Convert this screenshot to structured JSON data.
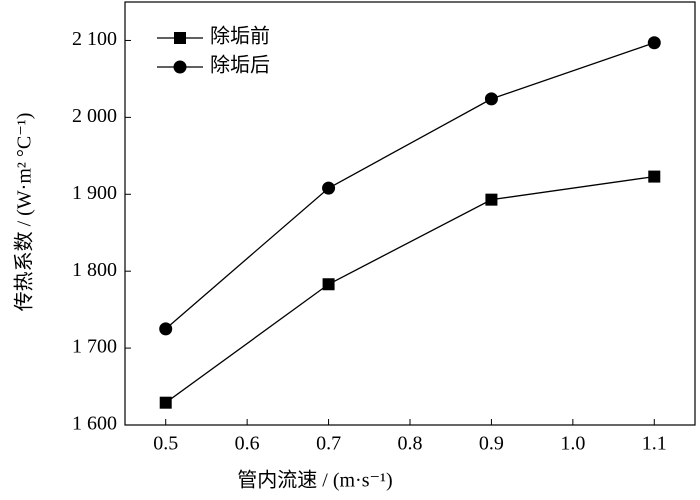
{
  "chart_data": {
    "type": "line",
    "x_label": "管内流速 / (m·s⁻¹)",
    "y_label": "传热系数 / (W·m² °C⁻¹)",
    "x": [
      0.5,
      0.7,
      0.9,
      1.1
    ],
    "series": [
      {
        "name": "除垢前",
        "color": "#000000",
        "marker": "square",
        "values": [
          1629,
          1783,
          1893,
          1923
        ]
      },
      {
        "name": "除垢后",
        "color": "#000000",
        "marker": "circle",
        "values": [
          1725,
          1908,
          2024,
          2097
        ]
      }
    ],
    "xlim": [
      0.45,
      1.15
    ],
    "xticks": [
      0.5,
      0.6,
      0.7,
      0.8,
      0.9,
      {
        "value": 1,
        "label": "1.0"
      },
      1.1
    ],
    "ylim": [
      1600,
      2150
    ],
    "yticks": [
      {
        "value": 1600,
        "label": "1 600"
      },
      {
        "value": 1700,
        "label": "1 700"
      },
      {
        "value": 1800,
        "label": "1 800"
      },
      {
        "value": 1900,
        "label": "1 900"
      },
      {
        "value": 2000,
        "label": "2 000"
      },
      {
        "value": 2100,
        "label": "2 100"
      }
    ],
    "legend": "upper left",
    "grid": false
  }
}
